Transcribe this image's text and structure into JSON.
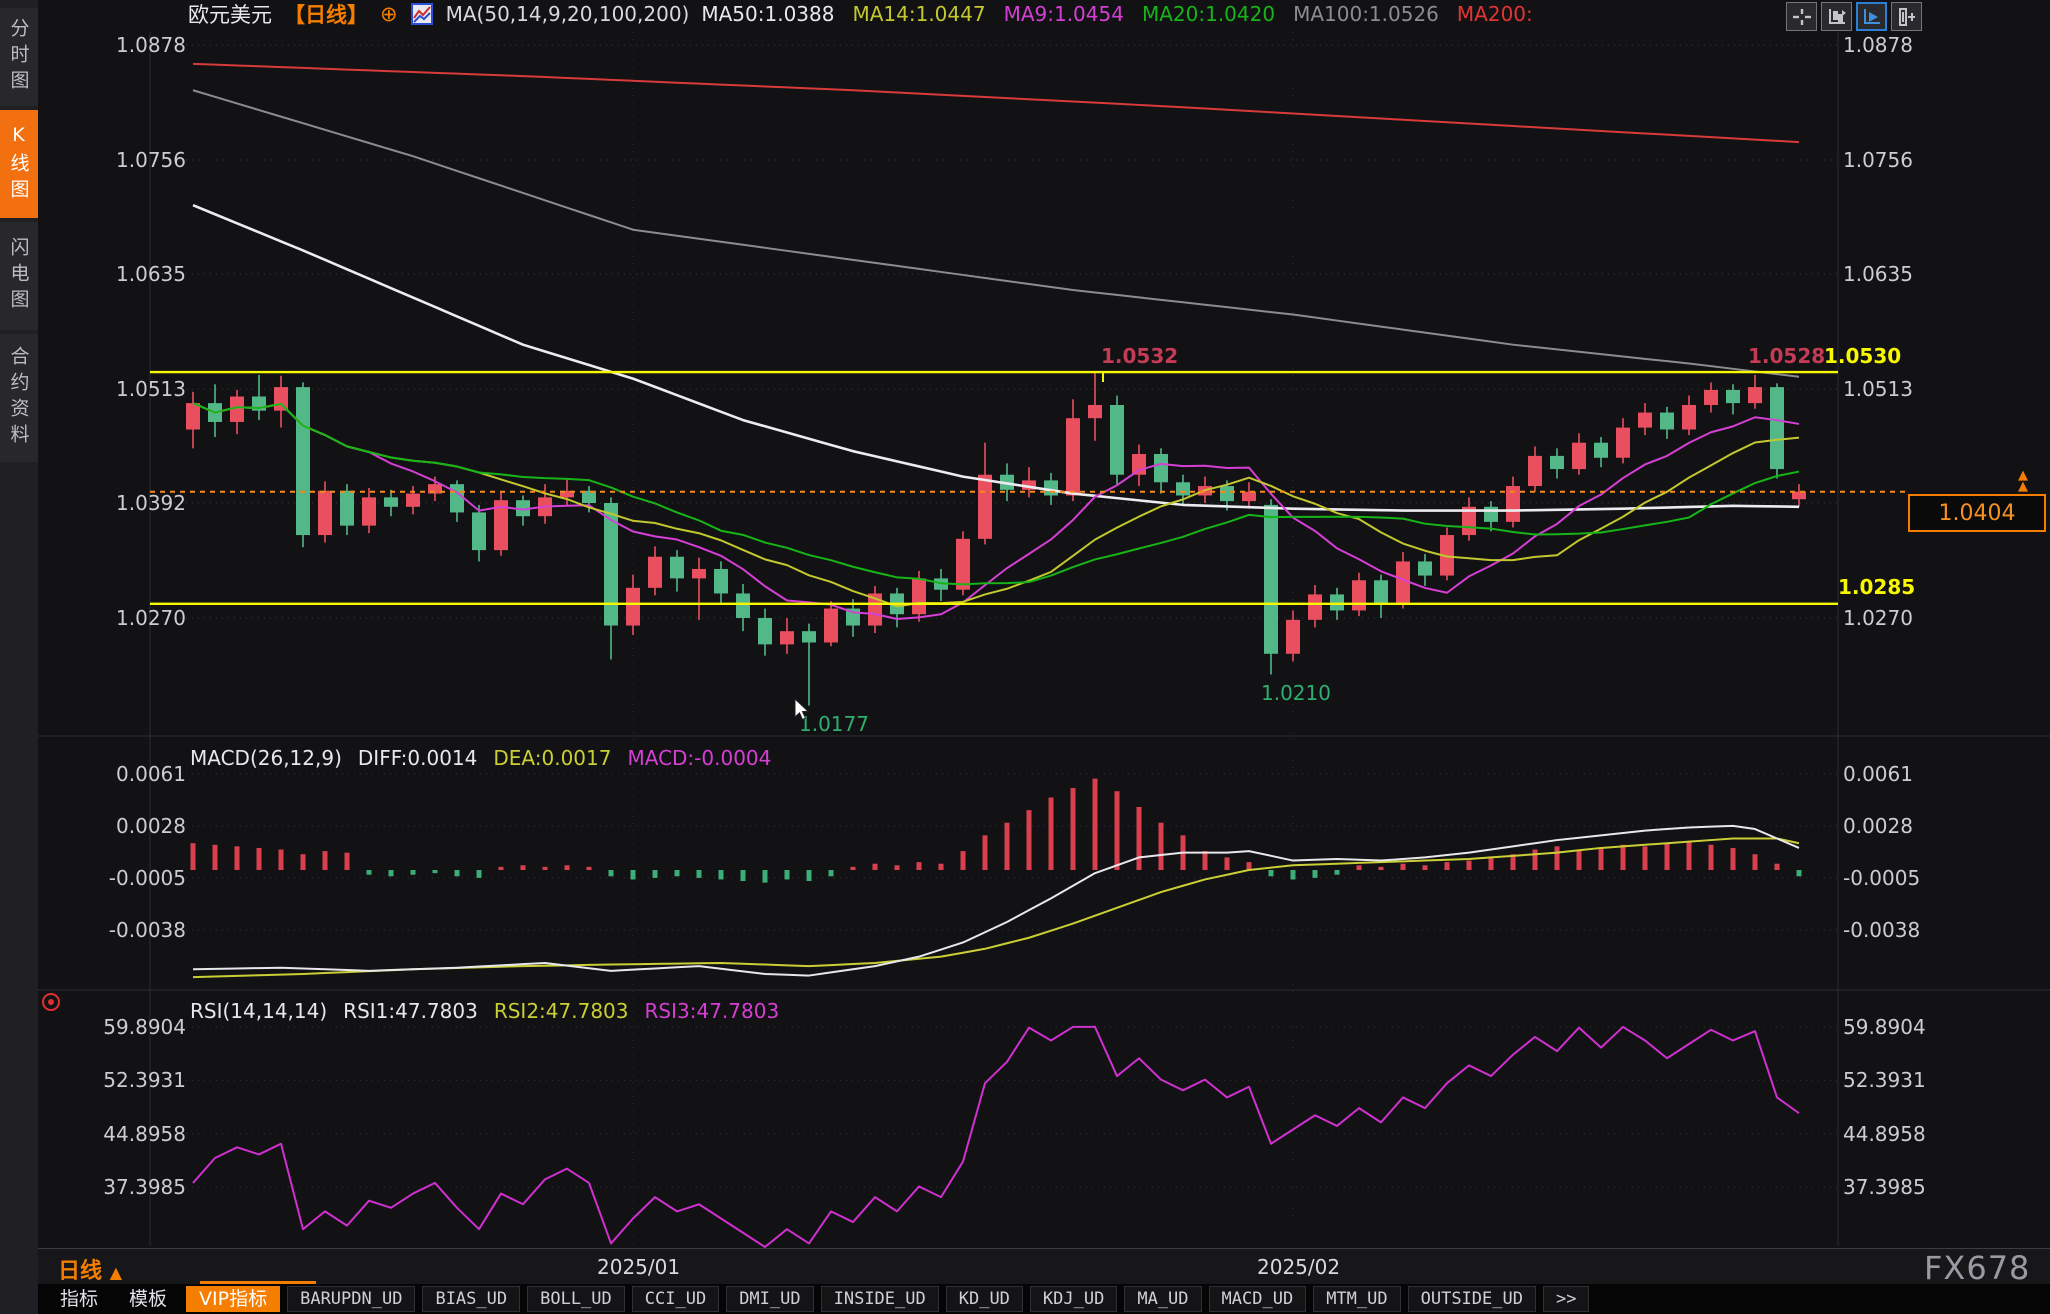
{
  "page": {
    "watermark": "FX678"
  },
  "sidebar": {
    "items": [
      {
        "label": "分时图",
        "active": false
      },
      {
        "label": "K线图",
        "active": true
      },
      {
        "label": "闪电图",
        "active": false
      },
      {
        "label": "合约资料",
        "active": false
      }
    ]
  },
  "header": {
    "symbol": "欧元美元",
    "timeframe_tag": "【日线】",
    "plus_glyph": "⊕",
    "ma_group_label": "MA(50,14,9,20,100,200)",
    "legend": [
      {
        "name": "MA50",
        "text": "MA50:1.0388",
        "color": "#e8e8ec"
      },
      {
        "name": "MA14",
        "text": "MA14:1.0447",
        "color": "#c2c82e"
      },
      {
        "name": "MA9",
        "text": "MA9:1.0454",
        "color": "#d53fd5"
      },
      {
        "name": "MA20",
        "text": "MA20:1.0420",
        "color": "#17b417"
      },
      {
        "name": "MA100",
        "text": "MA100:1.0526",
        "color": "#8b8b92"
      },
      {
        "name": "MA200",
        "text": "MA200:",
        "color": "#e23434"
      }
    ],
    "tools": [
      "move-crosshair-icon",
      "candle-scale-icon",
      "auto-scale-icon",
      "bar-offset-icon"
    ]
  },
  "panels": {
    "macd_header": {
      "title": "MACD(26,12,9)",
      "diff": "DIFF:0.0014",
      "dea": "DEA:0.0017",
      "macd": "MACD:-0.0004"
    },
    "rsi_header": {
      "title": "RSI(14,14,14)",
      "rsi1": "RSI1:47.7803",
      "rsi2": "RSI2:47.7803",
      "rsi3": "RSI3:47.7803"
    }
  },
  "bottom": {
    "timeframe": "日线",
    "tabs": [
      {
        "label": "指标",
        "style": "plain"
      },
      {
        "label": "模板",
        "style": "plain"
      },
      {
        "label": "VIP指标",
        "style": "active"
      },
      {
        "label": "BARUPDN_UD"
      },
      {
        "label": "BIAS_UD"
      },
      {
        "label": "BOLL_UD"
      },
      {
        "label": "CCI_UD"
      },
      {
        "label": "DMI_UD"
      },
      {
        "label": "INSIDE_UD"
      },
      {
        "label": "KD_UD"
      },
      {
        "label": "KDJ_UD"
      },
      {
        "label": "MA_UD"
      },
      {
        "label": "MACD_UD"
      },
      {
        "label": "MTM_UD"
      },
      {
        "label": "OUTSIDE_UD"
      },
      {
        "label": ">>"
      }
    ]
  },
  "chart_data": {
    "type": "candlestick",
    "title": "欧元美元 日线 EUR/USD Daily",
    "colors": {
      "up": "#ea4f5f",
      "down": "#52b887",
      "grid": "#3a3a42",
      "yellow_line": "#f8f800",
      "current_line": "#f58a1e"
    },
    "price_ticks_left": [
      "1.0878",
      "1.0756",
      "1.0635",
      "1.0513",
      "1.0392",
      "1.0270"
    ],
    "price_ticks_right": [
      "1.0878",
      "1.0756",
      "1.0635",
      "1.0513",
      "1.0270"
    ],
    "x_axis_labels": [
      {
        "text": "2025/01",
        "index": 20
      },
      {
        "text": "2025/02",
        "index": 50
      }
    ],
    "candles": [
      [
        1.047,
        1.051,
        1.045,
        1.0498
      ],
      [
        1.0498,
        1.0518,
        1.0462,
        1.0478
      ],
      [
        1.0478,
        1.0512,
        1.0465,
        1.0505
      ],
      [
        1.0505,
        1.0528,
        1.048,
        1.049
      ],
      [
        1.049,
        1.0527,
        1.0472,
        1.0515
      ],
      [
        1.0515,
        1.052,
        1.0345,
        1.0358
      ],
      [
        1.0358,
        1.0415,
        1.035,
        1.0405
      ],
      [
        1.0405,
        1.0412,
        1.0358,
        1.0368
      ],
      [
        1.0368,
        1.0408,
        1.036,
        1.0398
      ],
      [
        1.0398,
        1.0406,
        1.0378,
        1.0388
      ],
      [
        1.0388,
        1.041,
        1.038,
        1.0402
      ],
      [
        1.0402,
        1.042,
        1.0394,
        1.0412
      ],
      [
        1.0412,
        1.0416,
        1.0372,
        1.0382
      ],
      [
        1.0382,
        1.039,
        1.033,
        1.0342
      ],
      [
        1.0342,
        1.0404,
        1.0336,
        1.0395
      ],
      [
        1.0395,
        1.04,
        1.0368,
        1.0378
      ],
      [
        1.0378,
        1.0412,
        1.037,
        1.0398
      ],
      [
        1.0398,
        1.0418,
        1.039,
        1.0405
      ],
      [
        1.0405,
        1.041,
        1.0382,
        1.0392
      ],
      [
        1.0392,
        1.0398,
        1.0226,
        1.0262
      ],
      [
        1.0262,
        1.0316,
        1.0252,
        1.0302
      ],
      [
        1.0302,
        1.0346,
        1.0294,
        1.0335
      ],
      [
        1.0335,
        1.0342,
        1.0298,
        1.0312
      ],
      [
        1.0312,
        1.0334,
        1.0268,
        1.0322
      ],
      [
        1.0322,
        1.033,
        1.0284,
        1.0296
      ],
      [
        1.0296,
        1.0306,
        1.0256,
        1.027
      ],
      [
        1.027,
        1.028,
        1.023,
        1.0242
      ],
      [
        1.0242,
        1.027,
        1.0232,
        1.0256
      ],
      [
        1.0256,
        1.0264,
        1.0177,
        1.0244
      ],
      [
        1.0244,
        1.0288,
        1.024,
        1.028
      ],
      [
        1.028,
        1.029,
        1.025,
        1.0262
      ],
      [
        1.0262,
        1.0304,
        1.0254,
        1.0296
      ],
      [
        1.0296,
        1.0302,
        1.026,
        1.0274
      ],
      [
        1.0274,
        1.032,
        1.0266,
        1.0312
      ],
      [
        1.0312,
        1.0322,
        1.0288,
        1.03
      ],
      [
        1.03,
        1.0362,
        1.0294,
        1.0354
      ],
      [
        1.0354,
        1.0456,
        1.0348,
        1.0422
      ],
      [
        1.0422,
        1.0434,
        1.0394,
        1.0406
      ],
      [
        1.0406,
        1.043,
        1.0398,
        1.0416
      ],
      [
        1.0416,
        1.0424,
        1.039,
        1.04
      ],
      [
        1.04,
        1.0502,
        1.0394,
        1.0482
      ],
      [
        1.0482,
        1.0532,
        1.0458,
        1.0496
      ],
      [
        1.0496,
        1.0506,
        1.0412,
        1.0422
      ],
      [
        1.0422,
        1.0454,
        1.041,
        1.0444
      ],
      [
        1.0444,
        1.045,
        1.0402,
        1.0414
      ],
      [
        1.0414,
        1.0422,
        1.039,
        1.04
      ],
      [
        1.04,
        1.042,
        1.0392,
        1.041
      ],
      [
        1.041,
        1.0416,
        1.0384,
        1.0394
      ],
      [
        1.0394,
        1.0414,
        1.0386,
        1.0404
      ],
      [
        1.039,
        1.0396,
        1.021,
        1.0232
      ],
      [
        1.0232,
        1.0278,
        1.0224,
        1.0268
      ],
      [
        1.0268,
        1.0305,
        1.026,
        1.0295
      ],
      [
        1.0295,
        1.0302,
        1.0268,
        1.0278
      ],
      [
        1.0278,
        1.0318,
        1.0272,
        1.031
      ],
      [
        1.031,
        1.0316,
        1.027,
        1.0285
      ],
      [
        1.0285,
        1.034,
        1.028,
        1.033
      ],
      [
        1.033,
        1.0338,
        1.0304,
        1.0315
      ],
      [
        1.0315,
        1.0366,
        1.031,
        1.0358
      ],
      [
        1.0358,
        1.0398,
        1.0352,
        1.0388
      ],
      [
        1.0388,
        1.0394,
        1.0362,
        1.0372
      ],
      [
        1.0372,
        1.042,
        1.0366,
        1.041
      ],
      [
        1.041,
        1.0452,
        1.0404,
        1.0442
      ],
      [
        1.0442,
        1.045,
        1.0418,
        1.0428
      ],
      [
        1.0428,
        1.0466,
        1.0422,
        1.0456
      ],
      [
        1.0456,
        1.0462,
        1.043,
        1.044
      ],
      [
        1.044,
        1.0482,
        1.0434,
        1.0472
      ],
      [
        1.0472,
        1.0498,
        1.0464,
        1.0488
      ],
      [
        1.0488,
        1.0494,
        1.046,
        1.047
      ],
      [
        1.047,
        1.0506,
        1.0464,
        1.0496
      ],
      [
        1.0496,
        1.052,
        1.0488,
        1.0512
      ],
      [
        1.0512,
        1.0518,
        1.0486,
        1.0498
      ],
      [
        1.0498,
        1.0528,
        1.0492,
        1.0515
      ],
      [
        1.0515,
        1.0519,
        1.0418,
        1.0428
      ],
      [
        1.0396,
        1.0412,
        1.0388,
        1.0404
      ]
    ],
    "ma_short": [
      {
        "name": "MA9",
        "period": 9,
        "color": "#d53fd5"
      },
      {
        "name": "MA14",
        "period": 14,
        "color": "#c2c82e"
      },
      {
        "name": "MA20",
        "period": 20,
        "color": "#17b417"
      }
    ],
    "ma_long": [
      {
        "name": "MA50",
        "color": "#ececf0",
        "points": [
          [
            0,
            1.0708
          ],
          [
            5,
            1.066
          ],
          [
            10,
            1.061
          ],
          [
            15,
            1.056
          ],
          [
            20,
            1.0524
          ],
          [
            25,
            1.048
          ],
          [
            30,
            1.0447
          ],
          [
            35,
            1.042
          ],
          [
            40,
            1.0402
          ],
          [
            45,
            1.039
          ],
          [
            50,
            1.0386
          ],
          [
            55,
            1.0384
          ],
          [
            60,
            1.0384
          ],
          [
            65,
            1.0386
          ],
          [
            70,
            1.0389
          ],
          [
            73,
            1.0388
          ]
        ]
      },
      {
        "name": "MA100",
        "color": "#8b8b92",
        "points": [
          [
            0,
            1.083
          ],
          [
            10,
            1.076
          ],
          [
            20,
            1.0682
          ],
          [
            30,
            1.065
          ],
          [
            40,
            1.0618
          ],
          [
            50,
            1.0592
          ],
          [
            60,
            1.056
          ],
          [
            68,
            1.054
          ],
          [
            73,
            1.0526
          ]
        ]
      },
      {
        "name": "MA200",
        "color": "#d93a3a",
        "points": [
          [
            0,
            1.0858
          ],
          [
            15,
            1.0845
          ],
          [
            30,
            1.083
          ],
          [
            45,
            1.0812
          ],
          [
            60,
            1.0792
          ],
          [
            73,
            1.0775
          ]
        ]
      }
    ],
    "hlines": [
      {
        "price": 1.0531,
        "color": "#f8f800"
      },
      {
        "price": 1.0285,
        "color": "#f8f800"
      }
    ],
    "hline_labels": [
      {
        "text": "1.0532",
        "color": "#c43b55",
        "anchor": "mid",
        "index": 41
      },
      {
        "text": "1.0528",
        "color": "#c43b55",
        "anchor": "line-right"
      },
      {
        "text": "1.0530",
        "color": "#f8f800",
        "anchor": "axis-right"
      },
      {
        "text": "1.0285",
        "color": "#f8f800",
        "anchor": "axis-right-low"
      }
    ],
    "current_price": {
      "text": "1.0404",
      "value": 1.0404,
      "color": "#f58a1e"
    },
    "low_labels": [
      {
        "text": "1.0177",
        "index": 28,
        "price": 1.0177,
        "color": "#2fae6e"
      },
      {
        "text": "1.0210",
        "index": 49,
        "price": 1.021,
        "color": "#2fae6e"
      }
    ],
    "macd": {
      "params": "26,12,9",
      "ticks": [
        "0.0061",
        "0.0028",
        "-0.0005",
        "-0.0038"
      ],
      "colors": {
        "hist_up": "#d9404e",
        "hist_down": "#3cae77",
        "diff": "#e8e8ec",
        "dea": "#c9cf35"
      },
      "hist": [
        0.0017,
        0.0016,
        0.0015,
        0.0014,
        0.0013,
        0.001,
        0.0012,
        0.0011,
        -0.0003,
        -0.0004,
        -0.0003,
        -0.0002,
        -0.0004,
        -0.0005,
        0.0002,
        0.0003,
        0.0002,
        0.0003,
        0.0002,
        -0.0004,
        -0.0006,
        -0.0005,
        -0.0004,
        -0.0005,
        -0.0006,
        -0.0007,
        -0.0008,
        -0.0006,
        -0.0007,
        -0.0004,
        0.0002,
        0.0004,
        0.0003,
        0.0005,
        0.0004,
        0.0012,
        0.0022,
        0.003,
        0.0038,
        0.0046,
        0.0052,
        0.0058,
        0.005,
        0.004,
        0.003,
        0.0022,
        0.0012,
        0.0008,
        0.0005,
        -0.0004,
        -0.0006,
        -0.0005,
        -0.0003,
        0.0003,
        0.0002,
        0.0004,
        0.0003,
        0.0005,
        0.0006,
        0.0008,
        0.001,
        0.0013,
        0.0015,
        0.0012,
        0.0014,
        0.0016,
        0.0015,
        0.0017,
        0.0018,
        0.0016,
        0.0014,
        0.001,
        0.0004,
        -0.0004
      ],
      "diff_points": [
        [
          0,
          -0.0063
        ],
        [
          4,
          -0.0062
        ],
        [
          8,
          -0.0064
        ],
        [
          12,
          -0.0062
        ],
        [
          16,
          -0.0059
        ],
        [
          19,
          -0.0064
        ],
        [
          23,
          -0.0061
        ],
        [
          26,
          -0.0066
        ],
        [
          28,
          -0.0067
        ],
        [
          31,
          -0.0061
        ],
        [
          33,
          -0.0055
        ],
        [
          35,
          -0.0046
        ],
        [
          37,
          -0.0033
        ],
        [
          39,
          -0.0018
        ],
        [
          41,
          -0.0002
        ],
        [
          43,
          0.0008
        ],
        [
          45,
          0.0011
        ],
        [
          47,
          0.0011
        ],
        [
          48,
          0.0012
        ],
        [
          50,
          0.0006
        ],
        [
          52,
          0.0007
        ],
        [
          54,
          0.0006
        ],
        [
          56,
          0.0008
        ],
        [
          58,
          0.0011
        ],
        [
          60,
          0.0015
        ],
        [
          62,
          0.0019
        ],
        [
          64,
          0.0022
        ],
        [
          66,
          0.0025
        ],
        [
          68,
          0.0027
        ],
        [
          70,
          0.0028
        ],
        [
          71,
          0.0026
        ],
        [
          72,
          0.002
        ],
        [
          73,
          0.0014
        ]
      ],
      "dea_points": [
        [
          0,
          -0.0068
        ],
        [
          5,
          -0.0066
        ],
        [
          10,
          -0.0063
        ],
        [
          15,
          -0.0061
        ],
        [
          19,
          -0.006
        ],
        [
          24,
          -0.0059
        ],
        [
          28,
          -0.0061
        ],
        [
          31,
          -0.0059
        ],
        [
          34,
          -0.0055
        ],
        [
          36,
          -0.005
        ],
        [
          38,
          -0.0043
        ],
        [
          40,
          -0.0034
        ],
        [
          42,
          -0.0024
        ],
        [
          44,
          -0.0014
        ],
        [
          46,
          -0.0006
        ],
        [
          48,
          0.0
        ],
        [
          50,
          0.0003
        ],
        [
          52,
          0.0004
        ],
        [
          54,
          0.0005
        ],
        [
          56,
          0.0006
        ],
        [
          58,
          0.0007
        ],
        [
          60,
          0.0009
        ],
        [
          62,
          0.0011
        ],
        [
          64,
          0.0014
        ],
        [
          66,
          0.0016
        ],
        [
          68,
          0.0018
        ],
        [
          70,
          0.002
        ],
        [
          72,
          0.002
        ],
        [
          73,
          0.0017
        ]
      ]
    },
    "rsi": {
      "params": "14,14,14",
      "ticks": [
        "59.8904",
        "52.3931",
        "44.8958",
        "37.3985"
      ],
      "color": "#cf30cf",
      "values": [
        38.0,
        41.5,
        43.0,
        42.0,
        43.5,
        31.5,
        34.0,
        32.0,
        35.5,
        34.5,
        36.5,
        38.0,
        34.5,
        31.5,
        36.5,
        35.0,
        38.5,
        40.0,
        38.0,
        29.5,
        33.0,
        36.0,
        34.0,
        35.0,
        33.0,
        31.0,
        29.0,
        31.5,
        29.5,
        34.0,
        32.5,
        36.0,
        34.0,
        37.5,
        36.0,
        41.0,
        52.0,
        55.0,
        59.8,
        58.0,
        59.9,
        59.9,
        53.0,
        55.5,
        52.5,
        51.0,
        52.5,
        50.0,
        51.5,
        43.5,
        45.5,
        47.5,
        46.0,
        48.5,
        46.5,
        50.0,
        48.5,
        52.0,
        54.5,
        53.0,
        56.0,
        58.5,
        56.5,
        59.8,
        57.0,
        59.9,
        58.0,
        55.5,
        57.5,
        59.5,
        58.0,
        59.3,
        50.0,
        47.78
      ]
    }
  }
}
